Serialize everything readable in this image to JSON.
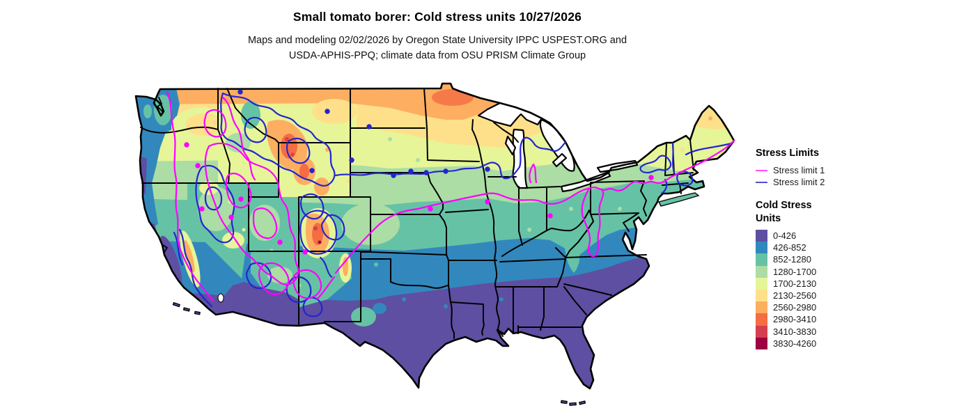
{
  "header": {
    "title": "Small tomato borer: Cold stress units 10/27/2026",
    "subtitle_line1": "Maps and modeling 02/02/2026 by Oregon State University IPPC USPEST.ORG and",
    "subtitle_line2": "USDA-APHIS-PPQ; climate data from OSU PRISM Climate Group"
  },
  "legend": {
    "stress_limits": {
      "heading": "Stress Limits",
      "items": [
        {
          "label": "Stress limit 1",
          "color": "#ff4dff"
        },
        {
          "label": "Stress limit 2",
          "color": "#5050cc"
        }
      ]
    },
    "cold_stress": {
      "heading_line1": "Cold Stress",
      "heading_line2": "Units",
      "bins": [
        {
          "label": "0-426",
          "color": "#5e4fa2"
        },
        {
          "label": "426-852",
          "color": "#3288bd"
        },
        {
          "label": "852-1280",
          "color": "#66c2a5"
        },
        {
          "label": "1280-1700",
          "color": "#abdda4"
        },
        {
          "label": "1700-2130",
          "color": "#e6f598"
        },
        {
          "label": "2130-2560",
          "color": "#fee08b"
        },
        {
          "label": "2560-2980",
          "color": "#fdae61"
        },
        {
          "label": "2980-3410",
          "color": "#f46d43"
        },
        {
          "label": "3410-3830",
          "color": "#d53e4f"
        },
        {
          "label": "3830-4260",
          "color": "#9e0142"
        }
      ]
    }
  },
  "map": {
    "stress_limit_1_color": "#ff00ff",
    "stress_limit_2_color": "#2525cf",
    "state_border_color": "#000000"
  }
}
